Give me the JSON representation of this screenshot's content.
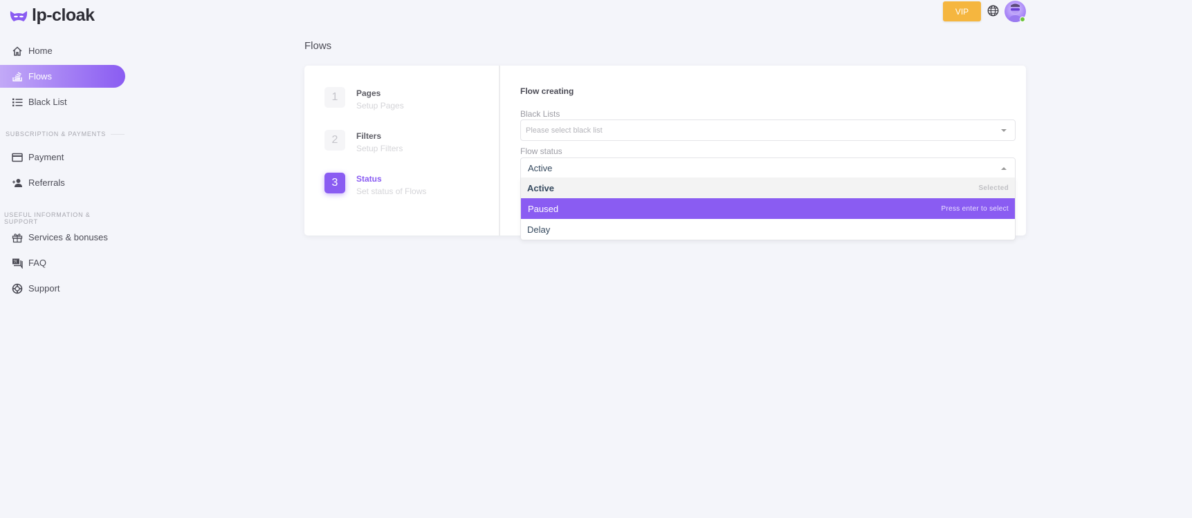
{
  "app": {
    "name": "lp-cloak"
  },
  "header": {
    "vip_label": "VIP",
    "language_icon": "globe-icon",
    "user_status": "online"
  },
  "sidebar": {
    "items": [
      {
        "label": "Home",
        "icon": "home-icon",
        "active": false
      },
      {
        "label": "Flows",
        "icon": "flows-icon",
        "active": true
      },
      {
        "label": "Black List",
        "icon": "list-icon",
        "active": false
      }
    ],
    "section1": {
      "title": "SUBSCRIPTION & PAYMENTS",
      "items": [
        {
          "label": "Payment",
          "icon": "credit-card-icon"
        },
        {
          "label": "Referrals",
          "icon": "user-plus-icon"
        }
      ]
    },
    "section2": {
      "title": "USEFUL INFORMATION & SUPPORT",
      "items": [
        {
          "label": "Services & bonuses",
          "icon": "gift-icon"
        },
        {
          "label": "FAQ",
          "icon": "faq-icon"
        },
        {
          "label": "Support",
          "icon": "lifebuoy-icon"
        }
      ]
    }
  },
  "main": {
    "title": "Flows",
    "steps": [
      {
        "num": "1",
        "title": "Pages",
        "subtitle": "Setup Pages"
      },
      {
        "num": "2",
        "title": "Filters",
        "subtitle": "Setup Filters"
      },
      {
        "num": "3",
        "title": "Status",
        "subtitle": "Set status of Flows",
        "active": true
      }
    ],
    "form": {
      "title": "Flow creating",
      "black_lists_label": "Black Lists",
      "black_lists_placeholder": "Please select black list",
      "flow_status_label": "Flow status",
      "flow_status_value": "Active",
      "options": [
        {
          "label": "Active",
          "hint": "Selected"
        },
        {
          "label": "Paused",
          "hint": "Press enter to select"
        },
        {
          "label": "Delay",
          "hint": ""
        }
      ]
    }
  },
  "colors": {
    "accent": "#8a5cf2",
    "vip": "#f5b63f",
    "online": "#6dc43a"
  }
}
